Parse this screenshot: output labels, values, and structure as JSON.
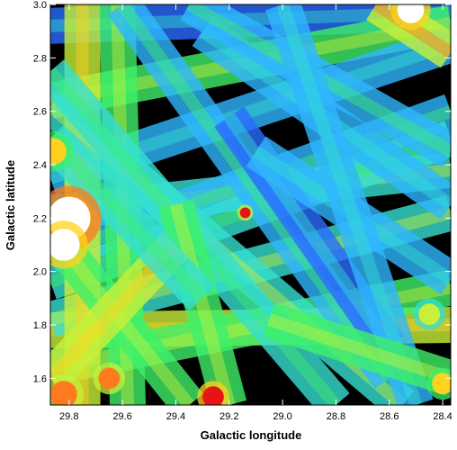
{
  "chart_data": {
    "type": "heatmap",
    "title": "",
    "xlabel": "Galactic longitude",
    "ylabel": "Galactic latitude",
    "xlim": [
      29.87,
      28.37
    ],
    "ylim": [
      1.5,
      3.0
    ],
    "xticks": [
      29.8,
      29.6,
      29.4,
      29.2,
      29.0,
      28.8,
      28.6,
      28.4
    ],
    "xtick_labels": [
      "29.8",
      "29.6",
      "29.4",
      "29.2",
      "29.0",
      "28.8",
      "28.6",
      "28.4"
    ],
    "yticks": [
      1.6,
      1.8,
      2.0,
      2.2,
      2.4,
      2.6,
      2.8,
      3.0
    ],
    "ytick_labels": [
      "1.6",
      "1.8",
      "2.0",
      "2.2",
      "2.4",
      "2.6",
      "2.8",
      "3.0"
    ],
    "background": "#000000",
    "colormap": [
      "#1030c8",
      "#2b6cff",
      "#2fb6ff",
      "#34e0d0",
      "#3ef06a",
      "#c8f03a",
      "#ffd21e",
      "#ff7a1e",
      "#e81414",
      "#ffffff"
    ],
    "stripes": [
      {
        "from": [
          29.87,
          2.92
        ],
        "to": [
          28.37,
          2.97
        ],
        "level": 0.15
      },
      {
        "from": [
          29.87,
          2.64
        ],
        "to": [
          28.37,
          2.93
        ],
        "level": 0.45
      },
      {
        "from": [
          29.87,
          2.35
        ],
        "to": [
          28.37,
          2.85
        ],
        "level": 0.2
      },
      {
        "from": [
          29.87,
          2.22
        ],
        "to": [
          28.37,
          2.38
        ],
        "level": 0.35
      },
      {
        "from": [
          29.87,
          2.06
        ],
        "to": [
          28.37,
          2.6
        ],
        "level": 0.25
      },
      {
        "from": [
          29.87,
          1.96
        ],
        "to": [
          28.37,
          2.5
        ],
        "level": 0.3
      },
      {
        "from": [
          29.87,
          1.78
        ],
        "to": [
          28.37,
          1.8
        ],
        "level": 0.5
      },
      {
        "from": [
          29.87,
          1.64
        ],
        "to": [
          28.37,
          1.94
        ],
        "level": 0.45
      },
      {
        "from": [
          29.87,
          1.82
        ],
        "to": [
          28.37,
          2.22
        ],
        "level": 0.35
      },
      {
        "from": [
          29.75,
          3.0
        ],
        "to": [
          29.75,
          1.5
        ],
        "level": 0.55
      },
      {
        "from": [
          29.62,
          3.0
        ],
        "to": [
          29.58,
          1.5
        ],
        "level": 0.4
      },
      {
        "from": [
          29.87,
          2.62
        ],
        "to": [
          28.55,
          1.5
        ],
        "level": 0.35
      },
      {
        "from": [
          29.6,
          3.0
        ],
        "to": [
          28.6,
          1.6
        ],
        "level": 0.25
      },
      {
        "from": [
          29.3,
          2.9
        ],
        "to": [
          28.37,
          2.25
        ],
        "level": 0.2
      },
      {
        "from": [
          29.87,
          2.75
        ],
        "to": [
          28.8,
          1.5
        ],
        "level": 0.3
      },
      {
        "from": [
          29.2,
          2.58
        ],
        "to": [
          28.6,
          1.72
        ],
        "level": 0.15
      },
      {
        "from": [
          29.87,
          2.15
        ],
        "to": [
          29.35,
          1.5
        ],
        "level": 0.45
      },
      {
        "from": [
          29.4,
          2.25
        ],
        "to": [
          29.2,
          1.5
        ],
        "level": 0.4
      },
      {
        "from": [
          29.35,
          3.0
        ],
        "to": [
          28.37,
          2.45
        ],
        "level": 0.25
      },
      {
        "from": [
          28.65,
          3.0
        ],
        "to": [
          28.37,
          2.82
        ],
        "level": 0.6
      },
      {
        "from": [
          29.1,
          2.45
        ],
        "to": [
          28.37,
          1.97
        ],
        "level": 0.2
      },
      {
        "from": [
          29.87,
          1.6
        ],
        "to": [
          29.4,
          2.1
        ],
        "level": 0.5
      },
      {
        "from": [
          29.0,
          3.0
        ],
        "to": [
          28.5,
          1.5
        ],
        "level": 0.2
      },
      {
        "from": [
          29.87,
          2.5
        ],
        "to": [
          29.3,
          1.9
        ],
        "level": 0.3
      },
      {
        "from": [
          29.05,
          1.82
        ],
        "to": [
          28.37,
          1.6
        ],
        "level": 0.4
      }
    ],
    "hotspots": [
      {
        "x": 29.8,
        "y": 2.2,
        "level": 1.0,
        "size": 0.08
      },
      {
        "x": 29.82,
        "y": 2.1,
        "level": 0.95,
        "size": 0.06
      },
      {
        "x": 29.14,
        "y": 2.22,
        "level": 0.85,
        "size": 0.02
      },
      {
        "x": 28.52,
        "y": 2.98,
        "level": 0.95,
        "size": 0.05
      },
      {
        "x": 29.26,
        "y": 1.53,
        "level": 0.9,
        "size": 0.04
      },
      {
        "x": 29.82,
        "y": 1.54,
        "level": 0.8,
        "size": 0.05
      },
      {
        "x": 29.65,
        "y": 1.6,
        "level": 0.75,
        "size": 0.04
      },
      {
        "x": 28.4,
        "y": 1.58,
        "level": 0.7,
        "size": 0.04
      },
      {
        "x": 28.45,
        "y": 1.84,
        "level": 0.6,
        "size": 0.04
      },
      {
        "x": 29.86,
        "y": 2.45,
        "level": 0.65,
        "size": 0.05
      }
    ]
  }
}
